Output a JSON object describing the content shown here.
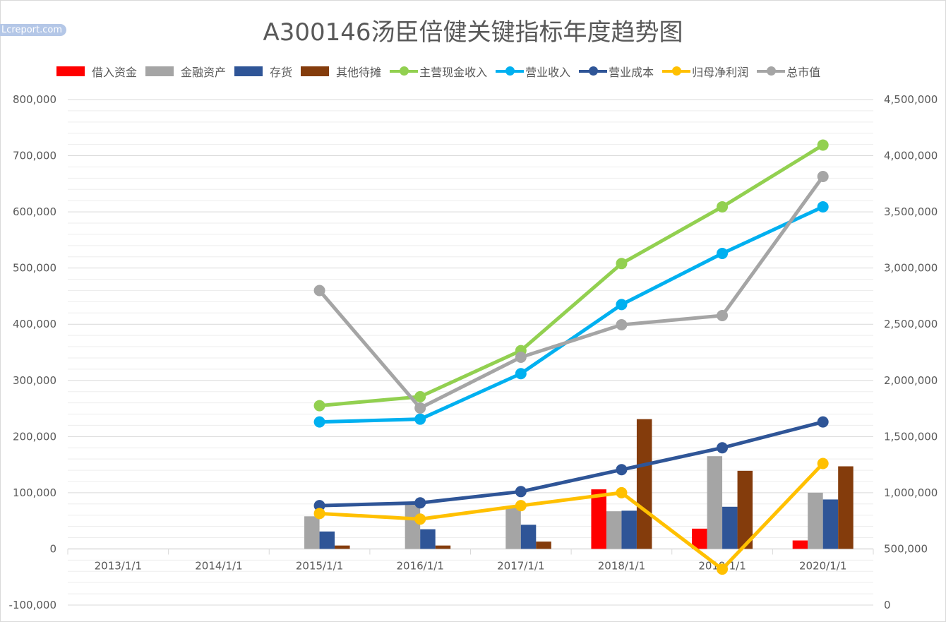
{
  "watermark": "Lcreport.com",
  "chart_data": {
    "type": "bar+line",
    "title": "A300146汤臣倍健关键指标年度趋势图",
    "categories": [
      "2013/1/1",
      "2014/1/1",
      "2015/1/1",
      "2016/1/1",
      "2017/1/1",
      "2018/1/1",
      "2019/1/1",
      "2020/1/1"
    ],
    "y_left": {
      "min": -100000,
      "max": 800000,
      "ticks": [
        "-100,000",
        "0",
        "100,000",
        "200,000",
        "300,000",
        "400,000",
        "500,000",
        "600,000",
        "700,000",
        "800,000"
      ]
    },
    "y_right": {
      "min": 0,
      "max": 4500000,
      "ticks": [
        "0",
        "500,000",
        "1,000,000",
        "1,500,000",
        "2,000,000",
        "2,500,000",
        "3,000,000",
        "3,500,000",
        "4,000,000",
        "4,500,000"
      ]
    },
    "grid": true,
    "legend_position": "top",
    "series": [
      {
        "name": "借入资金",
        "kind": "bar",
        "axis": "left",
        "color": "#ff0000",
        "values": [
          null,
          null,
          null,
          null,
          null,
          106000,
          36000,
          15000
        ]
      },
      {
        "name": "金融资产",
        "kind": "bar",
        "axis": "left",
        "color": "#a5a5a5",
        "values": [
          null,
          null,
          58000,
          80000,
          73000,
          67000,
          165000,
          100000
        ]
      },
      {
        "name": "存货",
        "kind": "bar",
        "axis": "left",
        "color": "#2f5597",
        "values": [
          null,
          null,
          31000,
          35000,
          43000,
          68000,
          75000,
          88000
        ]
      },
      {
        "name": "其他待摊",
        "kind": "bar",
        "axis": "left",
        "color": "#843c0c",
        "values": [
          null,
          null,
          6000,
          6000,
          13000,
          231000,
          139000,
          147000
        ]
      },
      {
        "name": "主营现金收入",
        "kind": "line",
        "axis": "left",
        "color": "#92d050",
        "values": [
          null,
          null,
          255000,
          271000,
          353000,
          508000,
          609000,
          719000
        ]
      },
      {
        "name": "营业收入",
        "kind": "line",
        "axis": "left",
        "color": "#00b0f0",
        "values": [
          null,
          null,
          226000,
          231000,
          312000,
          435000,
          526000,
          609000
        ]
      },
      {
        "name": "营业成本",
        "kind": "line",
        "axis": "left",
        "color": "#2f5597",
        "values": [
          null,
          null,
          77000,
          82000,
          102000,
          141000,
          180000,
          226000
        ]
      },
      {
        "name": "归母净利润",
        "kind": "line",
        "axis": "left",
        "color": "#ffc000",
        "values": [
          null,
          null,
          63000,
          53000,
          77000,
          100000,
          -36000,
          152000
        ]
      },
      {
        "name": "总市值",
        "kind": "line",
        "axis": "right",
        "color": "#a5a5a5",
        "values": [
          null,
          null,
          2800000,
          1754000,
          2206000,
          2495000,
          2577000,
          3815000
        ]
      }
    ]
  }
}
